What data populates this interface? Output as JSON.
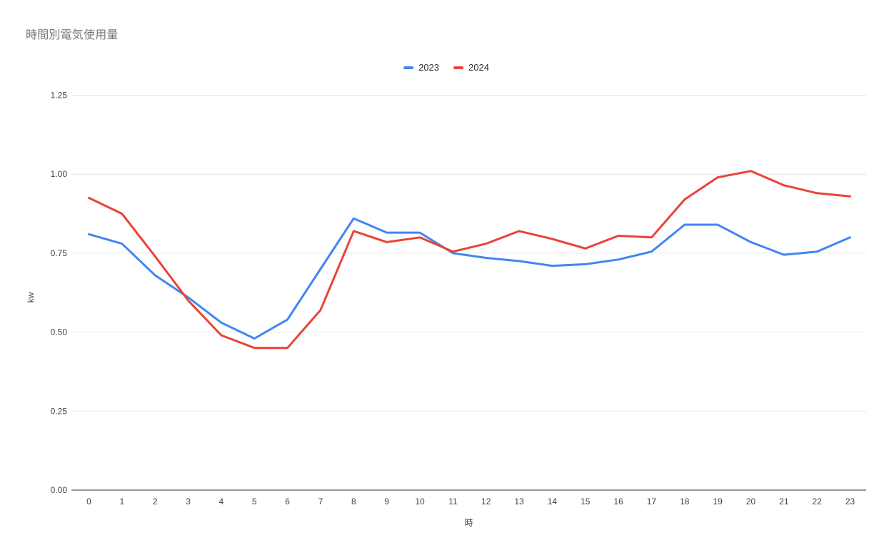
{
  "chart_data": {
    "type": "line",
    "title": "時間別電気使用量",
    "xlabel": "時",
    "ylabel": "kw",
    "x": [
      0,
      1,
      2,
      3,
      4,
      5,
      6,
      7,
      8,
      9,
      10,
      11,
      12,
      13,
      14,
      15,
      16,
      17,
      18,
      19,
      20,
      21,
      22,
      23
    ],
    "series": [
      {
        "name": "2023",
        "color": "#4285f4",
        "values": [
          0.81,
          0.78,
          0.68,
          0.61,
          0.53,
          0.48,
          0.54,
          0.7,
          0.86,
          0.815,
          0.815,
          0.75,
          0.735,
          0.725,
          0.71,
          0.715,
          0.73,
          0.755,
          0.84,
          0.84,
          0.785,
          0.745,
          0.755,
          0.8
        ]
      },
      {
        "name": "2024",
        "color": "#ea4335",
        "values": [
          0.925,
          0.875,
          0.74,
          0.6,
          0.49,
          0.45,
          0.45,
          0.57,
          0.82,
          0.785,
          0.8,
          0.755,
          0.78,
          0.82,
          0.795,
          0.765,
          0.805,
          0.8,
          0.92,
          0.99,
          1.01,
          0.965,
          0.94,
          0.93
        ]
      }
    ],
    "ylim": [
      0,
      1.25
    ],
    "yticks": [
      0,
      0.25,
      0.5,
      0.75,
      1.0,
      1.25
    ],
    "ytick_labels": [
      "0.00",
      "0.25",
      "0.50",
      "0.75",
      "1.00",
      "1.25"
    ],
    "grid": true,
    "legend_position": "top-center",
    "colors": {
      "gridline": "#e6e6e6",
      "axis_line": "#333333",
      "tick_label": "#424242",
      "title": "#757575",
      "background": "#ffffff"
    }
  }
}
